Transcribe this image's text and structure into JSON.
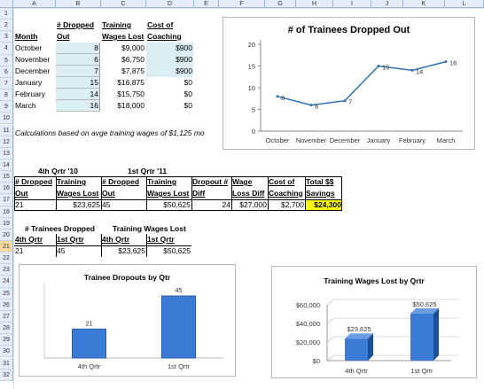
{
  "columns": [
    "A",
    "B",
    "C",
    "D",
    "E",
    "F",
    "G",
    "H",
    "I",
    "J",
    "K",
    "L"
  ],
  "rows": [
    "1",
    "2",
    "3",
    "4",
    "5",
    "6",
    "7",
    "8",
    "9",
    "10",
    "11",
    "12",
    "13",
    "14",
    "15",
    "16",
    "17",
    "18",
    "19",
    "20",
    "21",
    "22",
    "23",
    "24",
    "25",
    "26",
    "27",
    "28",
    "29",
    "30",
    "31",
    "32"
  ],
  "table1": {
    "headers": {
      "month": "Month",
      "dropped_l1": "# Dropped",
      "dropped_l2": "Out",
      "wages_l1": "Training",
      "wages_l2": "Wages Lost",
      "coach_l1": "Cost of",
      "coach_l2": "Coaching"
    },
    "rows": [
      {
        "month": "October",
        "dropped": "8",
        "wages": "$9,000",
        "coach": "$900"
      },
      {
        "month": "November",
        "dropped": "6",
        "wages": "$6,750",
        "coach": "$900"
      },
      {
        "month": "December",
        "dropped": "7",
        "wages": "$7,875",
        "coach": "$900"
      },
      {
        "month": "January",
        "dropped": "15",
        "wages": "$16,875",
        "coach": "$0"
      },
      {
        "month": "February",
        "dropped": "14",
        "wages": "$15,750",
        "coach": "$0"
      },
      {
        "month": "March",
        "dropped": "16",
        "wages": "$18,000",
        "coach": "$0"
      }
    ]
  },
  "note": "Calculations based on avge training wages of $1,125 mo",
  "summary": {
    "q4_label": "4th Qrtr '10",
    "q1_label": "1st Qrtr '11",
    "h1": [
      "# Dropped",
      "Training",
      "# Dropped",
      "Training",
      "Dropout #",
      "Wage",
      "Cost of",
      "Total $$"
    ],
    "h2": [
      "Out",
      "Wages Lost",
      "Out",
      "Wages Lost",
      "Diff",
      "Loss Diff",
      "Coaching",
      "Savings"
    ],
    "values": [
      "21",
      "$23,625",
      "45",
      "$50,625",
      "24",
      "$27,000",
      "$2,700",
      "$24,300"
    ]
  },
  "table3": {
    "title1": "# Trainees Dropped",
    "title2": "Training Wages Lost",
    "headers": [
      "4th Qrtr",
      "1st Qrtr",
      "4th Qrtr",
      "1st Qrtr"
    ],
    "values": [
      "21",
      "45",
      "$23,625",
      "$50,625"
    ]
  },
  "chart_data": [
    {
      "type": "line",
      "title": "# of Trainees Dropped Out",
      "categories": [
        "October",
        "November",
        "December",
        "January",
        "February",
        "March"
      ],
      "values": [
        8,
        6,
        7,
        15,
        14,
        16
      ],
      "ylim": [
        0,
        20
      ],
      "yticks": [
        "0",
        "5",
        "10",
        "15",
        "20"
      ],
      "color": "#2e6fb0"
    },
    {
      "type": "bar",
      "title": "Trainee Dropouts by Qtr",
      "categories": [
        "4th Qrtr",
        "1st Qrtr"
      ],
      "values": [
        21,
        45
      ],
      "color": "#3a7bd5"
    },
    {
      "type": "bar",
      "title": "Training Wages Lost by Qrtr",
      "categories": [
        "4th Qrtr",
        "1st Qrtr"
      ],
      "values": [
        23625,
        50625
      ],
      "labels": [
        "$23,625",
        "$50,625"
      ],
      "ylim": [
        0,
        60000
      ],
      "yticks": [
        "$0",
        "$20,000",
        "$40,000",
        "$60,000"
      ],
      "color": "#3a7bd5"
    }
  ]
}
